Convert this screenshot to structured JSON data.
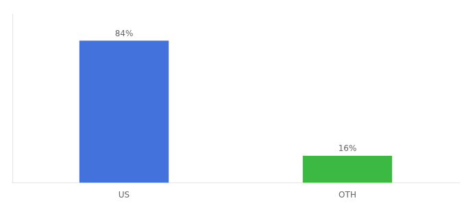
{
  "chart_data": {
    "type": "bar",
    "categories": [
      "US",
      "OTH"
    ],
    "values": [
      84,
      16
    ],
    "colors": [
      "#4472dd",
      "#3cb943"
    ],
    "value_labels": [
      "84%",
      "16%"
    ],
    "data_labels": true,
    "ylim": [
      0,
      100
    ],
    "yticks": [],
    "grid": false,
    "tick_labels": "x"
  }
}
